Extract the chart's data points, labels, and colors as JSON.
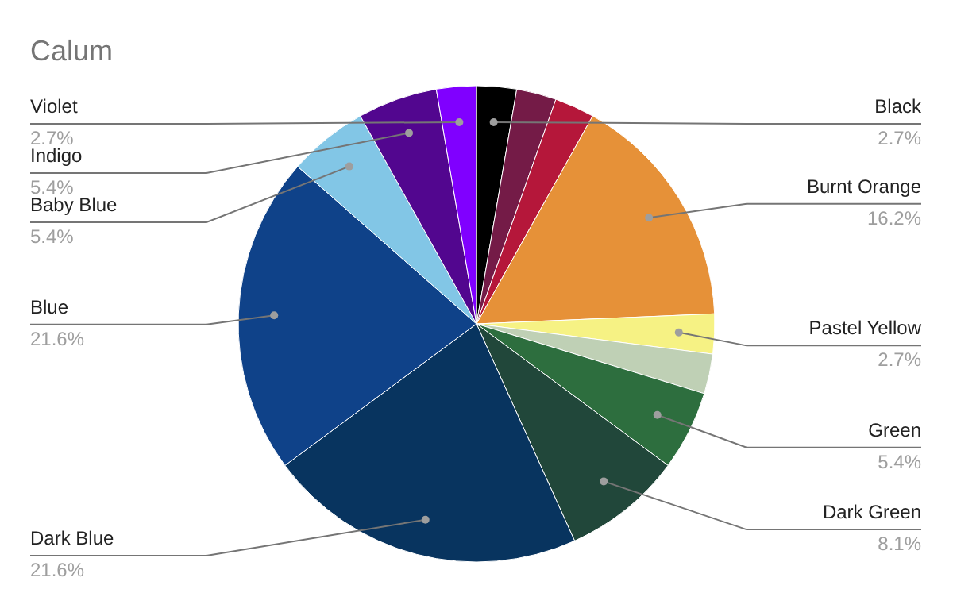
{
  "chart_data": {
    "type": "pie",
    "title": "Calum",
    "categories": [
      "Black",
      null,
      null,
      "Burnt Orange",
      "Pastel Yellow",
      null,
      "Green",
      "Dark Green",
      "Dark Blue",
      "Blue",
      "Baby Blue",
      "Indigo",
      "Violet"
    ],
    "values": [
      2.7,
      2.7,
      2.7,
      16.2,
      2.7,
      2.7,
      5.4,
      8.1,
      21.6,
      21.6,
      5.4,
      5.4,
      2.7
    ],
    "value_labels": [
      "2.7%",
      null,
      null,
      "16.2%",
      "2.7%",
      null,
      "5.4%",
      "8.1%",
      "21.6%",
      "21.6%",
      "5.4%",
      "5.4%",
      "2.7%"
    ],
    "colors": [
      "#000000",
      "#741b47",
      "#b5173a",
      "#e69138",
      "#f6f284",
      "#bfd0b5",
      "#2d6e3e",
      "#21473a",
      "#08345f",
      "#0f4289",
      "#82c6e6",
      "#52068f",
      "#8000ff"
    ]
  }
}
